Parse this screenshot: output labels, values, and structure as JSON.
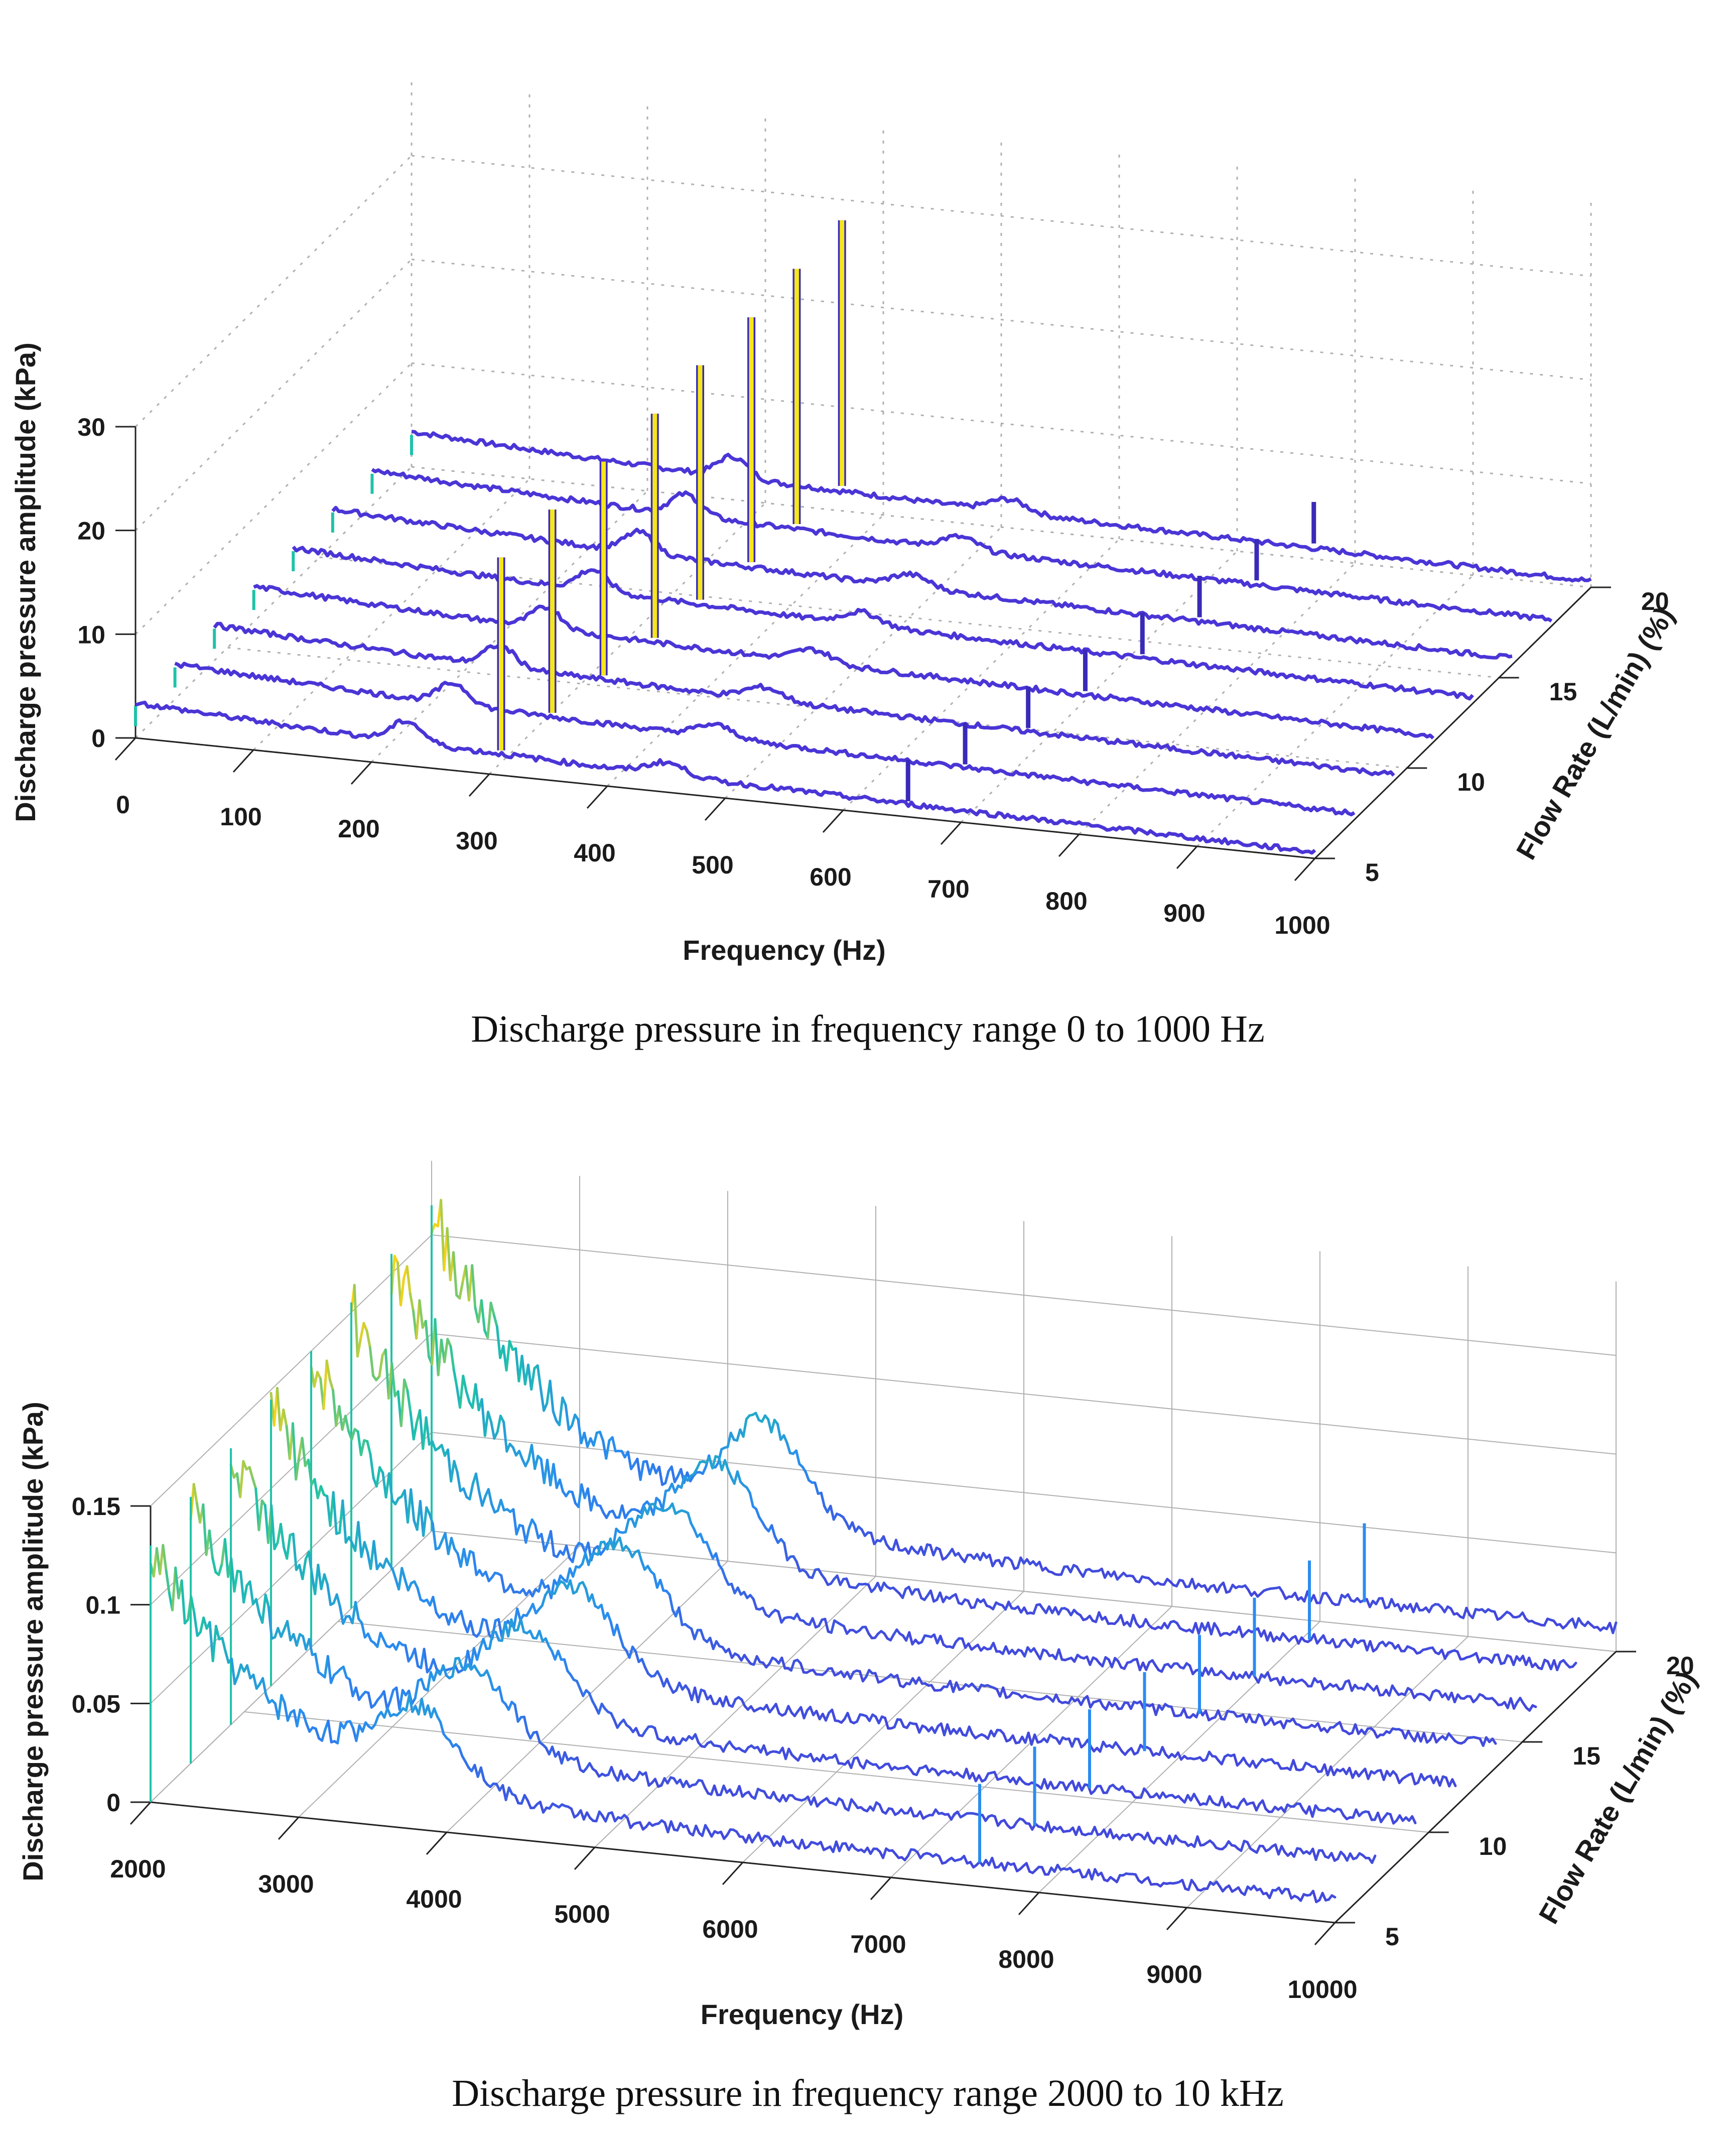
{
  "captions": {
    "top": "Discharge pressure in frequency range 0 to 1000 Hz",
    "bottom": "Discharge pressure in frequency range 2000 to 10 kHz"
  },
  "colors": {
    "line": "#4a35d6",
    "peak": "#f5e61a",
    "edge": "#3a2ab8",
    "mid": "#1ec3a8",
    "light": "#2a8cf0",
    "grid": "#b0b0b0",
    "axis": "#222222"
  },
  "chart_data": [
    {
      "type": "waterfall-3d",
      "title": "",
      "xlabel": "Frequency (Hz)",
      "ylabel": "Flow Rate (L/min) (%)",
      "zlabel": "Discharge pressure  amplitude (kPa)",
      "x_ticks": [
        "0",
        "100",
        "200",
        "300",
        "400",
        "500",
        "600",
        "700",
        "800",
        "900",
        "1000"
      ],
      "y_ticks": [
        "5",
        "10",
        "15",
        "20"
      ],
      "z_ticks": [
        "0",
        "10",
        "20",
        "30"
      ],
      "xlim": [
        0,
        1000
      ],
      "ylim": [
        5,
        20
      ],
      "zlim": [
        0,
        30
      ],
      "series": [
        {
          "name": "5",
          "peak_hz": 310,
          "peak_kpa": 21,
          "spike_hz": 655,
          "spike_kpa": 4
        },
        {
          "name": "7",
          "peak_hz": 320,
          "peak_kpa": 22,
          "spike_hz": 670,
          "spike_kpa": 4
        },
        {
          "name": "9",
          "peak_hz": 330,
          "peak_kpa": 23,
          "spike_hz": 690,
          "spike_kpa": 4
        },
        {
          "name": "11",
          "peak_hz": 340,
          "peak_kpa": 24,
          "spike_hz": 705,
          "spike_kpa": 4
        },
        {
          "name": "13",
          "peak_hz": 345,
          "peak_kpa": 25,
          "spike_hz": 720,
          "spike_kpa": 4
        },
        {
          "name": "15",
          "peak_hz": 355,
          "peak_kpa": 26,
          "spike_hz": 735,
          "spike_kpa": 4
        },
        {
          "name": "17",
          "peak_hz": 360,
          "peak_kpa": 27,
          "spike_hz": 750,
          "spike_kpa": 4
        },
        {
          "name": "20",
          "peak_hz": 365,
          "peak_kpa": 28,
          "spike_hz": 765,
          "spike_kpa": 4
        }
      ]
    },
    {
      "type": "waterfall-3d",
      "title": "",
      "xlabel": "Frequency (Hz)",
      "ylabel": "Flow Rate (L/min) (%)",
      "zlabel": "Discharge pressure amplitude (kPa)",
      "x_ticks": [
        "2000",
        "3000",
        "4000",
        "5000",
        "6000",
        "7000",
        "8000",
        "9000",
        "10000"
      ],
      "y_ticks": [
        "5",
        "10",
        "15",
        "20"
      ],
      "z_ticks": [
        "0",
        "0.05",
        "0.1",
        "0.15"
      ],
      "xlim": [
        2000,
        10000
      ],
      "ylim": [
        5,
        20
      ],
      "zlim": [
        0,
        0.15
      ],
      "series": [
        {
          "name": "5",
          "start_kpa": 0.13,
          "bump_hz": 3800,
          "bump_kpa": 0.04,
          "spike_hz": 7600,
          "spike_kpa": 0.04
        },
        {
          "name": "7",
          "start_kpa": 0.135,
          "bump_hz": 3900,
          "bump_kpa": 0.042,
          "spike_hz": 7700,
          "spike_kpa": 0.04
        },
        {
          "name": "9",
          "start_kpa": 0.14,
          "bump_hz": 4000,
          "bump_kpa": 0.044,
          "spike_hz": 7800,
          "spike_kpa": 0.04
        },
        {
          "name": "11",
          "start_kpa": 0.145,
          "bump_hz": 4050,
          "bump_kpa": 0.046,
          "spike_hz": 7900,
          "spike_kpa": 0.04
        },
        {
          "name": "13",
          "start_kpa": 0.15,
          "bump_hz": 4100,
          "bump_kpa": 0.048,
          "spike_hz": 8000,
          "spike_kpa": 0.04
        },
        {
          "name": "15",
          "start_kpa": 0.155,
          "bump_hz": 4150,
          "bump_kpa": 0.05,
          "spike_hz": 8100,
          "spike_kpa": 0.04
        },
        {
          "name": "17",
          "start_kpa": 0.16,
          "bump_hz": 4200,
          "bump_kpa": 0.052,
          "spike_hz": 8200,
          "spike_kpa": 0.04
        },
        {
          "name": "20",
          "start_kpa": 0.165,
          "bump_hz": 4250,
          "bump_kpa": 0.054,
          "spike_hz": 8300,
          "spike_kpa": 0.04
        }
      ]
    }
  ]
}
